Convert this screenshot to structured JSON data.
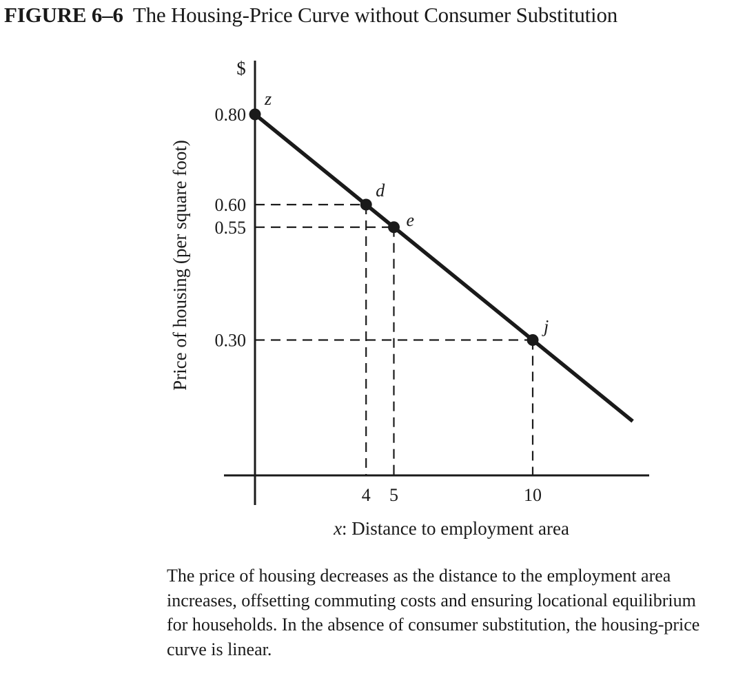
{
  "figure": {
    "number": "FIGURE 6–6",
    "title": "The Housing-Price Curve without Consumer Substitution"
  },
  "caption": "The price of housing decreases as the distance to the employment area increases, offsetting commuting costs and ensuring locational equilibrium for households. In the absence of consumer substitution, the housing-price curve is linear.",
  "chart_data": {
    "type": "line",
    "title": "The Housing-Price Curve without Consumer Substitution",
    "ylabel": "Price of housing (per square foot)",
    "yunit": "$",
    "xlabel_var": "x",
    "xlabel_text": ": Distance to employment area",
    "xlim": [
      0,
      14.2
    ],
    "ylim": [
      0,
      0.87
    ],
    "grid": false,
    "legend": "none",
    "xticks": [
      {
        "value": 4,
        "label": "4"
      },
      {
        "value": 5,
        "label": "5"
      },
      {
        "value": 10,
        "label": "10"
      }
    ],
    "yticks": [
      {
        "value": 0.8,
        "label": "0.80"
      },
      {
        "value": 0.6,
        "label": "0.60"
      },
      {
        "value": 0.55,
        "label": "0.55"
      },
      {
        "value": 0.3,
        "label": "0.30"
      }
    ],
    "series": [
      {
        "x": [
          0,
          13.6
        ],
        "y": [
          0.8,
          0.12
        ]
      }
    ],
    "points": [
      {
        "label": "z",
        "x": 0,
        "y": 0.8,
        "guides": false
      },
      {
        "label": "d",
        "x": 4,
        "y": 0.6,
        "guides": true
      },
      {
        "label": "e",
        "x": 5,
        "y": 0.55,
        "guides": true
      },
      {
        "label": "j",
        "x": 10,
        "y": 0.3,
        "guides": true
      }
    ],
    "colors": {
      "ink": "#1a1a1a",
      "background": "#ffffff"
    }
  }
}
